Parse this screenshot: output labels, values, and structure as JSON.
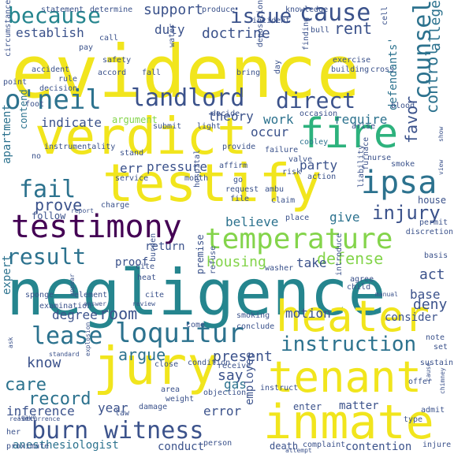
{
  "words": [
    {
      "text": "evidence",
      "color": "#f1e51d",
      "rotate": false
    },
    {
      "text": "negligence",
      "color": "#25858e",
      "rotate": false
    },
    {
      "text": "testify",
      "color": "#f1e51d",
      "rotate": false
    },
    {
      "text": "verdict",
      "color": "#f1e51d",
      "rotate": false
    },
    {
      "text": "jury",
      "color": "#f1e51d",
      "rotate": false
    },
    {
      "text": "inmate",
      "color": "#f1e51d",
      "rotate": false
    },
    {
      "text": "tenant",
      "color": "#f1e51d",
      "rotate": false
    },
    {
      "text": "heater",
      "color": "#f1e51d",
      "rotate": false
    },
    {
      "text": "fire",
      "color": "#2db27d",
      "rotate": false
    },
    {
      "text": "testimony",
      "color": "#440154",
      "rotate": false
    },
    {
      "text": "temperature",
      "color": "#84d44b",
      "rotate": false
    },
    {
      "text": "ipsa",
      "color": "#2c728e",
      "rotate": false
    },
    {
      "text": "o'neil",
      "color": "#2c728e",
      "rotate": false
    },
    {
      "text": "landlord",
      "color": "#3b528b",
      "rotate": false
    },
    {
      "text": "direct",
      "color": "#3b528b",
      "rotate": false
    },
    {
      "text": "because",
      "color": "#25858e",
      "rotate": false
    },
    {
      "text": "cause",
      "color": "#3b528b",
      "rotate": false
    },
    {
      "text": "issue",
      "color": "#3b528b",
      "rotate": false
    },
    {
      "text": "counsel",
      "color": "#2c728e",
      "rotate": true
    },
    {
      "text": "loquitur",
      "color": "#2c728e",
      "rotate": false
    },
    {
      "text": "lease",
      "color": "#2c728e",
      "rotate": false
    },
    {
      "text": "fail",
      "color": "#2c728e",
      "rotate": false
    },
    {
      "text": "result",
      "color": "#2c728e",
      "rotate": false
    },
    {
      "text": "burn",
      "color": "#3b528b",
      "rotate": false
    },
    {
      "text": "witness",
      "color": "#3b528b",
      "rotate": false
    },
    {
      "text": "instruction",
      "color": "#2c728e",
      "rotate": false
    },
    {
      "text": "injury",
      "color": "#3b528b",
      "rotate": false
    },
    {
      "text": "support",
      "color": "#3b528b",
      "rotate": false
    },
    {
      "text": "rent",
      "color": "#3b528b",
      "rotate": false
    },
    {
      "text": "doctrine",
      "color": "#3b528b",
      "rotate": false
    },
    {
      "text": "establish",
      "color": "#3b528b",
      "rotate": false
    },
    {
      "text": "duty",
      "color": "#3b528b",
      "rotate": false
    },
    {
      "text": "favor",
      "color": "#3b528b",
      "rotate": true
    },
    {
      "text": "control",
      "color": "#2c728e",
      "rotate": true
    },
    {
      "text": "allege",
      "color": "#2c728e",
      "rotate": true
    },
    {
      "text": "care",
      "color": "#2c728e",
      "rotate": false
    },
    {
      "text": "record",
      "color": "#2c728e",
      "rotate": false
    },
    {
      "text": "defense",
      "color": "#84d44b",
      "rotate": false
    },
    {
      "text": "housing",
      "color": "#84d44b",
      "rotate": false
    },
    {
      "text": "prove",
      "color": "#3b528b",
      "rotate": false
    },
    {
      "text": "indicate",
      "color": "#3b528b",
      "rotate": false
    },
    {
      "text": "theory",
      "color": "#3b528b",
      "rotate": false
    },
    {
      "text": "work",
      "color": "#2c728e",
      "rotate": false
    },
    {
      "text": "require",
      "color": "#2c728e",
      "rotate": false
    },
    {
      "text": "occur",
      "color": "#3b528b",
      "rotate": false
    },
    {
      "text": "party",
      "color": "#3b528b",
      "rotate": false
    },
    {
      "text": "pressure",
      "color": "#3b528b",
      "rotate": false
    },
    {
      "text": "err",
      "color": "#3b528b",
      "rotate": false
    },
    {
      "text": "give",
      "color": "#2c728e",
      "rotate": false
    },
    {
      "text": "believe",
      "color": "#2c728e",
      "rotate": false
    },
    {
      "text": "return",
      "color": "#3b528b",
      "rotate": false
    },
    {
      "text": "take",
      "color": "#3b528b",
      "rotate": false
    },
    {
      "text": "act",
      "color": "#3b528b",
      "rotate": false
    },
    {
      "text": "base",
      "color": "#3b528b",
      "rotate": false
    },
    {
      "text": "deny",
      "color": "#3b528b",
      "rotate": false
    },
    {
      "text": "room",
      "color": "#3b528b",
      "rotate": false
    },
    {
      "text": "motion",
      "color": "#3b528b",
      "rotate": false
    },
    {
      "text": "argue",
      "color": "#2c728e",
      "rotate": false
    },
    {
      "text": "know",
      "color": "#3b528b",
      "rotate": false
    },
    {
      "text": "present",
      "color": "#3b528b",
      "rotate": false
    },
    {
      "text": "degree",
      "color": "#3b528b",
      "rotate": false
    },
    {
      "text": "say",
      "color": "#3b528b",
      "rotate": false
    },
    {
      "text": "gas",
      "color": "#2c728e",
      "rotate": false
    },
    {
      "text": "inference",
      "color": "#3b528b",
      "rotate": false
    },
    {
      "text": "year",
      "color": "#3b528b",
      "rotate": false
    },
    {
      "text": "error",
      "color": "#3b528b",
      "rotate": false
    },
    {
      "text": "employee",
      "color": "#3b528b",
      "rotate": true
    },
    {
      "text": "anesthesiologist",
      "color": "#2c728e",
      "rotate": false
    },
    {
      "text": "conduct",
      "color": "#3b528b",
      "rotate": false
    },
    {
      "text": "death",
      "color": "#3b528b",
      "rotate": false
    },
    {
      "text": "contention",
      "color": "#3b528b",
      "rotate": false
    },
    {
      "text": "matter",
      "color": "#3b528b",
      "rotate": false
    },
    {
      "text": "enter",
      "color": "#3b528b",
      "rotate": false
    },
    {
      "text": "expert",
      "color": "#2c728e",
      "rotate": true
    },
    {
      "text": "apartment",
      "color": "#2c728e",
      "rotate": true
    },
    {
      "text": "defendants'",
      "color": "#2c728e",
      "rotate": true
    },
    {
      "text": "proof",
      "color": "#3b528b",
      "rotate": false
    },
    {
      "text": "premise",
      "color": "#3b528b",
      "rotate": true
    },
    {
      "text": "consider",
      "color": "#3b528b",
      "rotate": false
    },
    {
      "text": "smoking",
      "color": "#3b528b",
      "rotate": false
    },
    {
      "text": "contend",
      "color": "#2c728e",
      "rotate": true
    },
    {
      "text": "follow",
      "color": "#3b528b",
      "rotate": false
    },
    {
      "text": "house",
      "color": "#3b528b",
      "rotate": false
    },
    {
      "text": "cite",
      "color": "#3b528b",
      "rotate": false
    },
    {
      "text": "heat",
      "color": "#3b528b",
      "rotate": false
    },
    {
      "text": "element",
      "color": "#3b528b",
      "rotate": false
    },
    {
      "text": "review",
      "color": "#3b528b",
      "rotate": false
    },
    {
      "text": "answer",
      "color": "#3b528b",
      "rotate": false
    },
    {
      "text": "examination",
      "color": "#3b528b",
      "rotate": false
    },
    {
      "text": "sponge",
      "color": "#3b528b",
      "rotate": false
    },
    {
      "text": "argument",
      "color": "#84d44b",
      "rotate": false
    },
    {
      "text": "cooley",
      "color": "#2c728e",
      "rotate": false
    },
    {
      "text": "provide",
      "color": "#3b528b",
      "rotate": false
    },
    {
      "text": "failure",
      "color": "#3b528b",
      "rotate": false
    },
    {
      "text": "valve",
      "color": "#3b528b",
      "rotate": false
    },
    {
      "text": "risk",
      "color": "#3b528b",
      "rotate": false
    },
    {
      "text": "affirm",
      "color": "#3b528b",
      "rotate": false
    },
    {
      "text": "action",
      "color": "#3b528b",
      "rotate": false
    },
    {
      "text": "nurse",
      "color": "#3b528b",
      "rotate": false
    },
    {
      "text": "smoke",
      "color": "#3b528b",
      "rotate": false
    },
    {
      "text": "request",
      "color": "#3b528b",
      "rotate": false
    },
    {
      "text": "claim",
      "color": "#3b528b",
      "rotate": false
    },
    {
      "text": "place",
      "color": "#3b528b",
      "rotate": false
    },
    {
      "text": "file",
      "color": "#3b528b",
      "rotate": false
    },
    {
      "text": "go",
      "color": "#3b528b",
      "rotate": false
    },
    {
      "text": "stand",
      "color": "#3b528b",
      "rotate": false
    },
    {
      "text": "service",
      "color": "#3b528b",
      "rotate": false
    },
    {
      "text": "month",
      "color": "#3b528b",
      "rotate": false
    },
    {
      "text": "charge",
      "color": "#3b528b",
      "rotate": false
    },
    {
      "text": "report",
      "color": "#3b528b",
      "rotate": false
    },
    {
      "text": "hospital",
      "color": "#3b528b",
      "rotate": true
    },
    {
      "text": "condition",
      "color": "#3b528b",
      "rotate": false
    },
    {
      "text": "receive",
      "color": "#3b528b",
      "rotate": false
    },
    {
      "text": "objection",
      "color": "#3b528b",
      "rotate": false
    },
    {
      "text": "area",
      "color": "#3b528b",
      "rotate": false
    },
    {
      "text": "weight",
      "color": "#3b528b",
      "rotate": false
    },
    {
      "text": "damage",
      "color": "#3b528b",
      "rotate": false
    },
    {
      "text": "close",
      "color": "#3b528b",
      "rotate": false
    },
    {
      "text": "law",
      "color": "#3b528b",
      "rotate": false
    },
    {
      "text": "instruct",
      "color": "#3b528b",
      "rotate": false
    },
    {
      "text": "person",
      "color": "#3b528b",
      "rotate": false
    },
    {
      "text": "complaint",
      "color": "#3b528b",
      "rotate": false
    },
    {
      "text": "attempt",
      "color": "#3b528b",
      "rotate": false
    },
    {
      "text": "proximate",
      "color": "#3b528b",
      "rotate": false
    },
    {
      "text": "reason",
      "color": "#3b528b",
      "rotate": false
    },
    {
      "text": "occurrence",
      "color": "#3b528b",
      "rotate": false
    },
    {
      "text": "standard",
      "color": "#3b528b",
      "rotate": false
    },
    {
      "text": "ask",
      "color": "#3b528b",
      "rotate": true
    },
    {
      "text": "leave",
      "color": "#3b528b",
      "rotate": false
    },
    {
      "text": "explosion",
      "color": "#3b528b",
      "rotate": true
    },
    {
      "text": "determine",
      "color": "#3b528b",
      "rotate": false
    },
    {
      "text": "statement",
      "color": "#3b528b",
      "rotate": false
    },
    {
      "text": "produce",
      "color": "#3b528b",
      "rotate": false
    },
    {
      "text": "knowledge",
      "color": "#3b528b",
      "rotate": false
    },
    {
      "text": "incident",
      "color": "#3b528b",
      "rotate": false
    },
    {
      "text": "circumstance",
      "color": "#3b528b",
      "rotate": true
    },
    {
      "text": "call",
      "color": "#3b528b",
      "rotate": false
    },
    {
      "text": "pay",
      "color": "#3b528b",
      "rotate": false
    },
    {
      "text": "safety",
      "color": "#3b528b",
      "rotate": false
    },
    {
      "text": "accord",
      "color": "#3b528b",
      "rotate": false
    },
    {
      "text": "fall",
      "color": "#3b528b",
      "rotate": false
    },
    {
      "text": "water",
      "color": "#3b528b",
      "rotate": true
    },
    {
      "text": "deposition",
      "color": "#3b528b",
      "rotate": true
    },
    {
      "text": "bring",
      "color": "#3b528b",
      "rotate": false
    },
    {
      "text": "finding",
      "color": "#3b528b",
      "rotate": true
    },
    {
      "text": "exercise",
      "color": "#3b528b",
      "rotate": false
    },
    {
      "text": "building",
      "color": "#3b528b",
      "rotate": false
    },
    {
      "text": "cross",
      "color": "#3b528b",
      "rotate": false
    },
    {
      "text": "bull",
      "color": "#3b528b",
      "rotate": false
    },
    {
      "text": "cell",
      "color": "#3b528b",
      "rotate": true
    },
    {
      "text": "accident",
      "color": "#3b528b",
      "rotate": false
    },
    {
      "text": "rule",
      "color": "#3b528b",
      "rotate": false
    },
    {
      "text": "point",
      "color": "#3b528b",
      "rotate": false
    },
    {
      "text": "decision",
      "color": "#3b528b",
      "rotate": false
    },
    {
      "text": "foot",
      "color": "#3b528b",
      "rotate": false
    },
    {
      "text": "day",
      "color": "#3b528b",
      "rotate": true
    },
    {
      "text": "decide",
      "color": "#3b528b",
      "rotate": false
    },
    {
      "text": "submit",
      "color": "#3b528b",
      "rotate": false
    },
    {
      "text": "light",
      "color": "#3b528b",
      "rotate": false
    },
    {
      "text": "occasion",
      "color": "#3b528b",
      "rotate": false
    },
    {
      "text": "arise",
      "color": "#3b528b",
      "rotate": false
    },
    {
      "text": "blood",
      "color": "#3b528b",
      "rotate": false
    },
    {
      "text": "instrumentality",
      "color": "#3b528b",
      "rotate": false
    },
    {
      "text": "no",
      "color": "#3b528b",
      "rotate": false
    },
    {
      "text": "furnace",
      "color": "#3b528b",
      "rotate": true
    },
    {
      "text": "liability",
      "color": "#3b528b",
      "rotate": true
    },
    {
      "text": "ambu",
      "color": "#3b528b",
      "rotate": false
    },
    {
      "text": "permit",
      "color": "#3b528b",
      "rotate": false
    },
    {
      "text": "discretion",
      "color": "#3b528b",
      "rotate": false
    },
    {
      "text": "basis",
      "color": "#3b528b",
      "rotate": false
    },
    {
      "text": "view",
      "color": "#3b528b",
      "rotate": true
    },
    {
      "text": "show",
      "color": "#3b528b",
      "rotate": true
    },
    {
      "text": "washer",
      "color": "#3b528b",
      "rotate": false
    },
    {
      "text": "refuse",
      "color": "#3b528b",
      "rotate": true
    },
    {
      "text": "child",
      "color": "#3b528b",
      "rotate": false
    },
    {
      "text": "agree",
      "color": "#3b528b",
      "rotate": false
    },
    {
      "text": "introduce",
      "color": "#3b528b",
      "rotate": true
    },
    {
      "text": "manual",
      "color": "#3b528b",
      "rotate": false
    },
    {
      "text": "appear",
      "color": "#3b528b",
      "rotate": true
    },
    {
      "text": "conclude",
      "color": "#3b528b",
      "rotate": false
    },
    {
      "text": "come",
      "color": "#3b528b",
      "rotate": false
    },
    {
      "text": "cite",
      "color": "#3b528b",
      "rotate": false
    },
    {
      "text": "burden",
      "color": "#3b528b",
      "rotate": true
    },
    {
      "text": "note",
      "color": "#3b528b",
      "rotate": false
    },
    {
      "text": "set",
      "color": "#3b528b",
      "rotate": false
    },
    {
      "text": "sustain",
      "color": "#3b528b",
      "rotate": false
    },
    {
      "text": "offer",
      "color": "#3b528b",
      "rotate": false
    },
    {
      "text": "admit",
      "color": "#3b528b",
      "rotate": false
    },
    {
      "text": "injure",
      "color": "#3b528b",
      "rotate": false
    },
    {
      "text": "type",
      "color": "#3b528b",
      "rotate": false
    },
    {
      "text": "chimney",
      "color": "#3b528b",
      "rotate": true
    },
    {
      "text": "cause",
      "color": "#3b528b",
      "rotate": true
    },
    {
      "text": "her",
      "color": "#3b528b",
      "rotate": false
    }
  ]
}
